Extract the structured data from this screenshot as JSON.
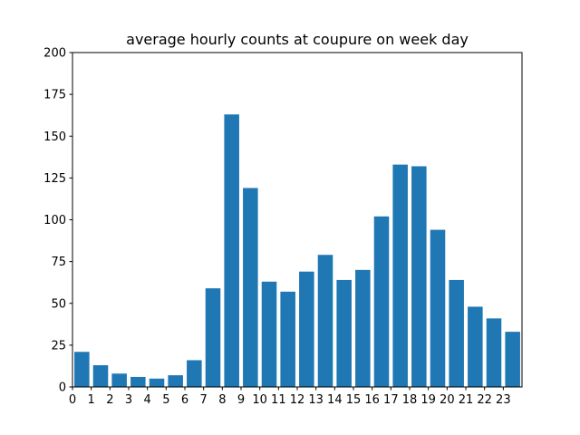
{
  "chart_data": {
    "type": "bar",
    "title": "average hourly counts at coupure on week day",
    "xlabel": "",
    "ylabel": "",
    "categories": [
      "0",
      "1",
      "2",
      "3",
      "4",
      "5",
      "6",
      "7",
      "8",
      "9",
      "10",
      "11",
      "12",
      "13",
      "14",
      "15",
      "16",
      "17",
      "18",
      "19",
      "20",
      "21",
      "22",
      "23"
    ],
    "values": [
      21,
      13,
      8,
      6,
      5,
      7,
      16,
      59,
      163,
      119,
      63,
      57,
      69,
      79,
      64,
      70,
      102,
      133,
      132,
      94,
      64,
      48,
      41,
      33
    ],
    "xlim": [
      0,
      24
    ],
    "ylim": [
      0,
      200
    ],
    "yticks": [
      0,
      25,
      50,
      75,
      100,
      125,
      150,
      175,
      200
    ],
    "ytick_labels": [
      "0",
      "25",
      "50",
      "75",
      "100",
      "125",
      "150",
      "175",
      "200"
    ],
    "grid": false,
    "legend": "none",
    "bar_color": "#1f77b4"
  }
}
